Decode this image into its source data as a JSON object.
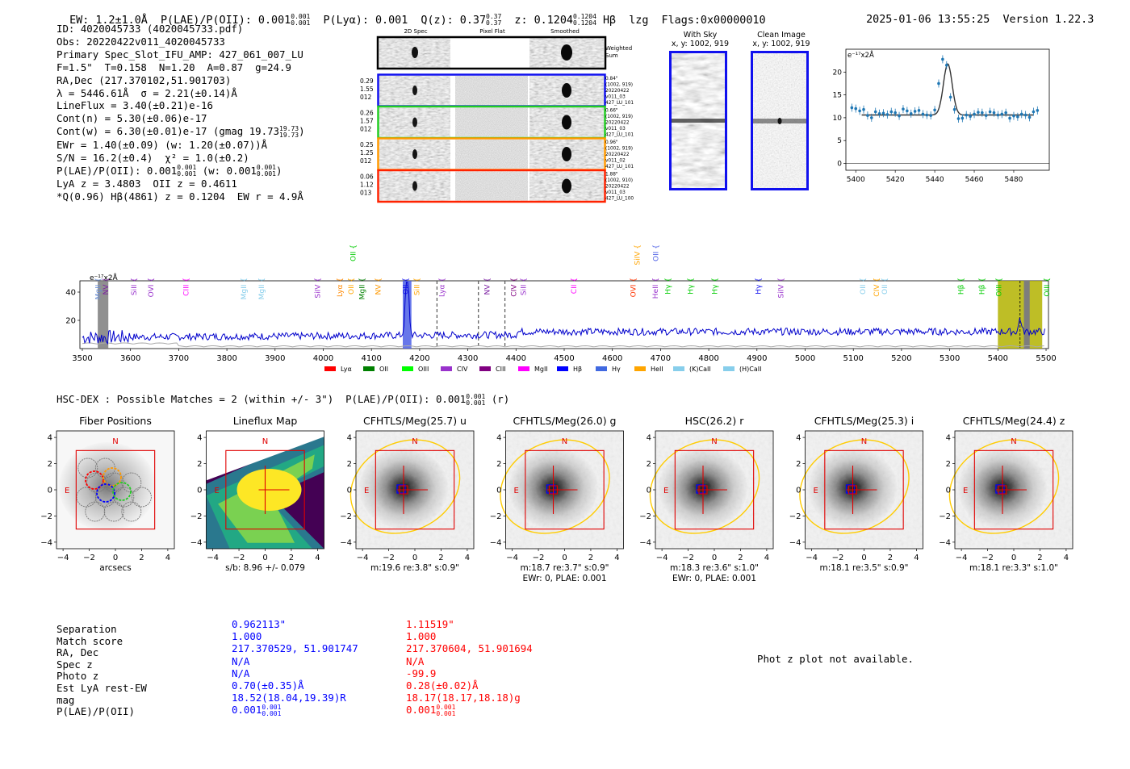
{
  "header": {
    "ew": "EW: 1.2±1.0Å",
    "plae": "P(LAE)/P(OII): 0.001",
    "plae_sup": "0.001",
    "plae_sub": "0.001",
    "plya": "P(Lyα): 0.001",
    "qz": "Q(z): 0.37",
    "qz_sup": "0.37",
    "qz_sub": "0.37",
    "z": "z: 0.1204",
    "z_sup": "0.1204",
    "z_sub": "0.1204",
    "hb": "Hβ",
    "lzg": "lzg",
    "flags": "Flags:0x00000010",
    "timestamp": "2025-01-06 13:55:25",
    "version": "Version 1.22.3"
  },
  "info": {
    "id": "ID: 4020045733 (4020045733.pdf)",
    "obs": "Obs: 20220422v011_4020045733",
    "primary": "Primary Spec_Slot_IFU_AMP: 427_061_007_LU",
    "fit": "F=1.5\"  T=0.158  N=1.20  A=0.87  g=24.9",
    "radec": "RA,Dec (217.370102,51.901703)",
    "lambda": "λ = 5446.61Å  σ = 2.21(±0.14)Å",
    "lineflux": "LineFlux = 3.40(±0.21)e-16",
    "contn": "Cont(n) = 5.30(±0.06)e-17",
    "contw": "Cont(w) = 6.30(±0.01)e-17 (gmag 19.73",
    "contw_sup": "19.73",
    "contw_sub": "19.73",
    "contw_end": ")",
    "ewr": "EWr = 1.40(±0.09) (w: 1.20(±0.07))Å",
    "sn": "S/N = 16.2(±0.4)  χ² = 1.0(±0.2)",
    "plae": "P(LAE)/P(OII): 0.001",
    "plae_sup": "0.001",
    "plae_sub": "0.001",
    "plae_w": " (w: 0.001",
    "plae_w_sup": "0.001",
    "plae_w_sub": "0.001",
    "plae_w_end": ")",
    "lya": "LyA z = 3.4803  OII z = 0.4611",
    "q": "*Q(0.96) Hβ(4861) z = 0.1204  EW r = 4.9Å"
  },
  "cutouts": {
    "col_headers": [
      "2D Spec",
      "Pixel Flat",
      "Smoothed"
    ],
    "weighted_sum": "Weighted Sum",
    "rows": [
      {
        "left": [
          "0.29",
          "1.55",
          "012"
        ],
        "right": [
          "0.84\"",
          "(1002, 919)",
          "20220422",
          "v011_03",
          "427_LU_101"
        ],
        "color": "#1010ee"
      },
      {
        "left": [
          "0.26",
          "1.57",
          "012"
        ],
        "right": [
          "0.66\"",
          "(1002, 919)",
          "20220422",
          "v011_03",
          "427_LU_101"
        ],
        "color": "#22cc22"
      },
      {
        "left": [
          "0.25",
          "1.25",
          "012"
        ],
        "right": [
          "0.96\"",
          "(1002, 919)",
          "20220422",
          "v011_02",
          "427_LU_101"
        ],
        "color": "#ff9900"
      },
      {
        "left": [
          "0.06",
          "1.12",
          "013"
        ],
        "right": [
          "1.88\"",
          "(1002, 910)",
          "20220422",
          "v011_03",
          "427_LU_100"
        ],
        "color": "#ff2200"
      }
    ]
  },
  "sky": {
    "with_sky": "With Sky",
    "clean": "Clean Image",
    "coords": "x, y: 1002, 919"
  },
  "chart_data": [
    {
      "type": "line",
      "title": "",
      "ylabel": "e⁻¹⁷x2Å",
      "xlim": [
        5395,
        5498
      ],
      "ylim": [
        -1.5,
        25
      ],
      "xticks": [
        5400,
        5420,
        5440,
        5460,
        5480
      ],
      "yticks": [
        0,
        5,
        10,
        15,
        20
      ],
      "x": [
        5398,
        5400,
        5402,
        5404,
        5406,
        5408,
        5410,
        5412,
        5414,
        5416,
        5418,
        5420,
        5422,
        5424,
        5426,
        5428,
        5430,
        5432,
        5434,
        5436,
        5438,
        5440,
        5442,
        5444,
        5446,
        5448,
        5450,
        5452,
        5454,
        5456,
        5458,
        5460,
        5462,
        5464,
        5466,
        5468,
        5470,
        5472,
        5474,
        5476,
        5478,
        5480,
        5482,
        5484,
        5486,
        5488,
        5490,
        5492
      ],
      "y": [
        12.2,
        12.0,
        11.5,
        11.8,
        10.5,
        10.0,
        11.3,
        10.9,
        11.0,
        10.7,
        11.3,
        11.1,
        10.4,
        11.9,
        11.5,
        10.9,
        11.4,
        11.6,
        10.8,
        10.6,
        10.5,
        11.7,
        17.5,
        22.8,
        21.5,
        14.5,
        11.8,
        9.8,
        9.9,
        10.6,
        10.3,
        10.8,
        11.2,
        11.1,
        10.5,
        11.3,
        11.1,
        10.6,
        10.8,
        11.1,
        9.9,
        10.4,
        10.2,
        10.8,
        10.6,
        10.1,
        11.3,
        11.6
      ],
      "fit_baseline": 10.6,
      "fit_peak_center": 5446.6,
      "fit_peak_height": 11.2,
      "fit_sigma": 2.21
    },
    {
      "type": "line",
      "ylabel": "e⁻¹⁷x2Å",
      "xlim": [
        3495,
        5505
      ],
      "ylim": [
        0,
        48
      ],
      "xticks": [
        3500,
        3600,
        3700,
        3800,
        3900,
        4000,
        4100,
        4200,
        4300,
        4400,
        4500,
        4600,
        4700,
        4800,
        4900,
        5000,
        5100,
        5200,
        5300,
        5400,
        5500
      ],
      "yticks": [
        20,
        40
      ],
      "emission_peak": {
        "center": 4174,
        "height": 46
      },
      "emission_peak2": {
        "center": 5446,
        "height": 22
      },
      "dashed_lines": [
        4236,
        4322,
        4377
      ],
      "shaded_regions": [
        {
          "start": 3532,
          "end": 3554,
          "color": "#7d7d7d"
        },
        {
          "start": 4165,
          "end": 4183,
          "color": "#4c5fe6"
        },
        {
          "start": 5400,
          "end": 5492,
          "color": "#b3b300"
        }
      ],
      "line_labels": [
        {
          "name": "MgII",
          "x": 3533,
          "color": "#6b8fd6",
          "row": 1
        },
        {
          "name": "NV",
          "x": 3549,
          "color": "#7b1fa2",
          "row": 1
        },
        {
          "name": "SiII",
          "x": 3607,
          "color": "#9932cc",
          "row": 1
        },
        {
          "name": "OVI",
          "x": 3642,
          "color": "#9932cc",
          "row": 1
        },
        {
          "name": "CIII",
          "x": 3715,
          "color": "#ff00ff",
          "row": 1
        },
        {
          "name": "MgII",
          "x": 3835,
          "color": "#87ceeb",
          "row": 1
        },
        {
          "name": "MgII",
          "x": 3872,
          "color": "#87ceeb",
          "row": 1
        },
        {
          "name": "SiIV",
          "x": 3988,
          "color": "#9932cc",
          "row": 1
        },
        {
          "name": "Lyα",
          "x": 4034,
          "color": "#ff8800",
          "row": 1
        },
        {
          "name": "OII",
          "x": 4058,
          "color": "#ffa500",
          "row": 1
        },
        {
          "name": "MgII",
          "x": 4080,
          "color": "#008000",
          "row": 1
        },
        {
          "name": "NV",
          "x": 4114,
          "color": "#ff9900",
          "row": 1
        },
        {
          "name": "OII",
          "x": 4171,
          "color": "#1010ee",
          "row": 1
        },
        {
          "name": "SiII",
          "x": 4194,
          "color": "#ffa500",
          "row": 1
        },
        {
          "name": "Lyα",
          "x": 4246,
          "color": "#9932cc",
          "row": 1
        },
        {
          "name": "NV",
          "x": 4340,
          "color": "#7b1fa2",
          "row": 1
        },
        {
          "name": "CIV",
          "x": 4395,
          "color": "#800080",
          "row": 1
        },
        {
          "name": "SiII",
          "x": 4415,
          "color": "#9932cc",
          "row": 1
        },
        {
          "name": "CII",
          "x": 4520,
          "color": "#ff00ff",
          "row": 1
        },
        {
          "name": "OVI",
          "x": 4643,
          "color": "#ff3300",
          "row": 1
        },
        {
          "name": "HeII",
          "x": 4689,
          "color": "#9932cc",
          "row": 1
        },
        {
          "name": "Hγ",
          "x": 4715,
          "color": "#00cc00",
          "row": 1
        },
        {
          "name": "Hγ",
          "x": 4762,
          "color": "#00cc00",
          "row": 1
        },
        {
          "name": "Hγ",
          "x": 4812,
          "color": "#00cc00",
          "row": 1
        },
        {
          "name": "Hγ",
          "x": 4903,
          "color": "#1010ee",
          "row": 1
        },
        {
          "name": "SiIV",
          "x": 4950,
          "color": "#9932cc",
          "row": 1
        },
        {
          "name": "OII",
          "x": 5120,
          "color": "#87ceeb",
          "row": 1
        },
        {
          "name": "CIV",
          "x": 5148,
          "color": "#ffa500",
          "row": 1
        },
        {
          "name": "OII",
          "x": 5165,
          "color": "#87ceeb",
          "row": 1
        },
        {
          "name": "Hβ",
          "x": 5323,
          "color": "#00cc00",
          "row": 1
        },
        {
          "name": "Hβ",
          "x": 5367,
          "color": "#00cc00",
          "row": 1
        },
        {
          "name": "OIII",
          "x": 5402,
          "color": "#00cc00",
          "row": 1
        },
        {
          "name": "OIII",
          "x": 5502,
          "color": "#00cc00",
          "row": 1
        },
        {
          "name": "OII",
          "x": 4062,
          "color": "#00cc00",
          "row": 0
        },
        {
          "name": "SiIV",
          "x": 4652,
          "color": "#ffa500",
          "row": 0
        },
        {
          "name": "OII",
          "x": 4690,
          "color": "#4c5fe6",
          "row": 0
        }
      ],
      "legend": [
        {
          "name": "Lyα",
          "color": "#ff0000"
        },
        {
          "name": "OII",
          "color": "#008000"
        },
        {
          "name": "OIII",
          "color": "#00ff00"
        },
        {
          "name": "CIV",
          "color": "#9932cc"
        },
        {
          "name": "CIII",
          "color": "#800080"
        },
        {
          "name": "MgII",
          "color": "#ff00ff"
        },
        {
          "name": "Hβ",
          "color": "#0000ff"
        },
        {
          "name": "Hγ",
          "color": "#4169e1"
        },
        {
          "name": "HeII",
          "color": "#ffa500"
        },
        {
          "name": "(K)CaII",
          "color": "#87ceeb"
        },
        {
          "name": "(H)CaII",
          "color": "#87ceeb"
        }
      ]
    }
  ],
  "hsc": {
    "title": "HSC-DEX : Possible Matches = 2 (within +/- 3\")  P(LAE)/P(OII): 0.001",
    "title_sup": "0.001",
    "title_sub": "0.001",
    "title_end": "(r)"
  },
  "panels": [
    {
      "title": "Fiber Positions",
      "caption1": "arcsecs",
      "caption2": "",
      "kind": "fiber"
    },
    {
      "title": "Lineflux Map",
      "caption1": "s/b: 8.96 +/- 0.079",
      "caption2": "",
      "kind": "lineflux"
    },
    {
      "title": "CFHTLS/Meg(25.7) u",
      "caption1": "m:19.6  re:3.8\"  s:0.9\"",
      "caption2": "",
      "kind": "img"
    },
    {
      "title": "CFHTLS/Meg(26.0) g",
      "caption1": "m:18.7  re:3.7\"  s:0.9\"",
      "caption2": "EWr: 0, PLAE: 0.001",
      "kind": "img"
    },
    {
      "title": "HSC(26.2) r",
      "caption1": "m:18.3  re:3.6\"  s:1.0\"",
      "caption2": "EWr: 0, PLAE: 0.001",
      "kind": "img"
    },
    {
      "title": "CFHTLS/Meg(25.3) i",
      "caption1": "m:18.1  re:3.5\"  s:0.9\"",
      "caption2": "",
      "kind": "img"
    },
    {
      "title": "CFHTLS/Meg(24.4) z",
      "caption1": "m:18.1  re:3.3\"  s:1.0\"",
      "caption2": "",
      "kind": "img"
    }
  ],
  "panel_axes": {
    "ticks": [
      "−4",
      "−2",
      "0",
      "2",
      "4"
    ],
    "yticks": [
      "4",
      "2",
      "0",
      "−2",
      "−4"
    ],
    "north": "N",
    "east": "E"
  },
  "matches": {
    "labels": [
      "Separation",
      "Match score",
      "RA, Dec",
      "Spec z",
      "Photo z",
      "Est LyA rest-EW",
      "mag",
      "P(LAE)/P(OII)"
    ],
    "m1": [
      "0.962113\"",
      "1.000",
      "217.370529, 51.901747",
      "N/A",
      "N/A",
      "0.70(±0.35)Å",
      "18.52(18.04,19.39)R",
      "0.001"
    ],
    "m1_plae_sup": "0.001",
    "m1_plae_sub": "0.001",
    "m2": [
      "1.11519\"",
      "1.000",
      "217.370604, 51.901694",
      "N/A",
      "-99.9",
      "0.28(±0.02)Å",
      "18.17(18.17,18.18)g",
      "0.001"
    ],
    "m2_plae_sup": "0.001",
    "m2_plae_sub": "0.001",
    "photz_note": "Phot z plot not available."
  }
}
